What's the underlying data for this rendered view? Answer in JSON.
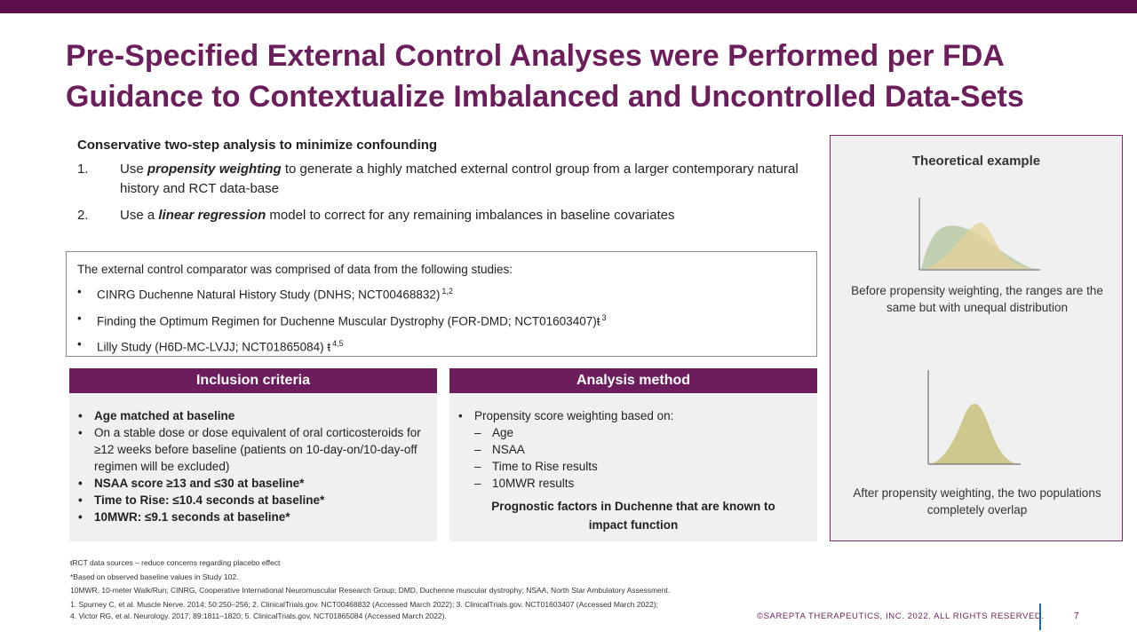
{
  "slide": {
    "title_line1": "Pre-Specified External Control Analyses were Performed per FDA",
    "title_line2": "Guidance to Contextualize Imbalanced and Uncontrolled Data-Sets"
  },
  "intro": {
    "heading": "Conservative two-step analysis to minimize confounding",
    "steps": [
      {
        "num": "1.",
        "pre": "Use ",
        "em": "propensity weighting",
        "post": " to generate a highly matched external control group from a larger contemporary natural history and RCT data-base"
      },
      {
        "num": "2.",
        "pre": "Use a ",
        "em": "linear regression",
        "post": " model to correct for any remaining imbalances in baseline covariates"
      }
    ]
  },
  "studies": {
    "lead": "The external control comparator was comprised of data from the following studies:",
    "items": [
      {
        "text": "CINRG Duchenne Natural History Study (DNHS; NCT00468832)",
        "sup": "1,2"
      },
      {
        "text": "Finding the Optimum Regimen for Duchenne Muscular Dystrophy (FOR-DMD; NCT01603407)ŧ",
        "sup": "3"
      },
      {
        "text": "Lilly Study (H6D-MC-LVJJ; NCT01865084) ŧ",
        "sup": "4,5"
      }
    ],
    "bullet": "•"
  },
  "inclusion": {
    "header": "Inclusion criteria",
    "items": [
      {
        "text": "Age matched at baseline",
        "bold": true
      },
      {
        "text": "On a stable dose or dose equivalent of oral corticosteroids for ≥12 weeks before baseline (patients on 10-day-on/10-day-off regimen will be excluded)",
        "bold": false
      },
      {
        "text": "NSAA score ≥13 and ≤30 at baseline*",
        "bold": true
      },
      {
        "text": "Time to Rise: ≤10.4 seconds at baseline*",
        "bold": true
      },
      {
        "text": "10MWR: ≤9.1 seconds at baseline*",
        "bold": true
      }
    ]
  },
  "analysis": {
    "header": "Analysis method",
    "lead": "Propensity score weighting based on:",
    "sub_items": [
      "Age",
      "NSAA",
      "Time to Rise results",
      "10MWR results"
    ],
    "dash": "–",
    "prognostic": "Prognostic factors in Duchenne that are known to impact function"
  },
  "example": {
    "title": "Theoretical example",
    "before_caption": "Before propensity weighting, the ranges are the same but with unequal distribution",
    "after_caption": "After propensity weighting, the two populations completely overlap",
    "colors": {
      "green": "#b9c9a6",
      "tan": "#e6d39a",
      "overlap": "#c9c588"
    }
  },
  "footnotes": {
    "lines": [
      "ŧRCT data sources – reduce concerns regarding placebo effect",
      "*Based on observed baseline values in Study 102.",
      "10MWR, 10-meter Walk/Run; CINRG, Cooperative International Neuromuscular Research Group; DMD, Duchenne muscular dystrophy; NSAA, North Star Ambulatory Assessment.",
      "1. Spurney C, et al. Muscle Nerve. 2014; 50:250–256; 2. ClinicalTrials.gov. NCT00468832 (Accessed March 2022); 3. ClinicalTrials.gov. NCT01603407 (Accessed March 2022);",
      "4. Victor RG, et al. Neurology. 2017; 89:1811–1820; 5. ClinicalTrials.gov. NCT01865084 (Accessed March 2022)."
    ]
  },
  "footer": {
    "copyright": "©SAREPTA THERAPEUTICS, INC. 2022.  ALL RIGHTS RESERVED.",
    "page_number": "7"
  }
}
